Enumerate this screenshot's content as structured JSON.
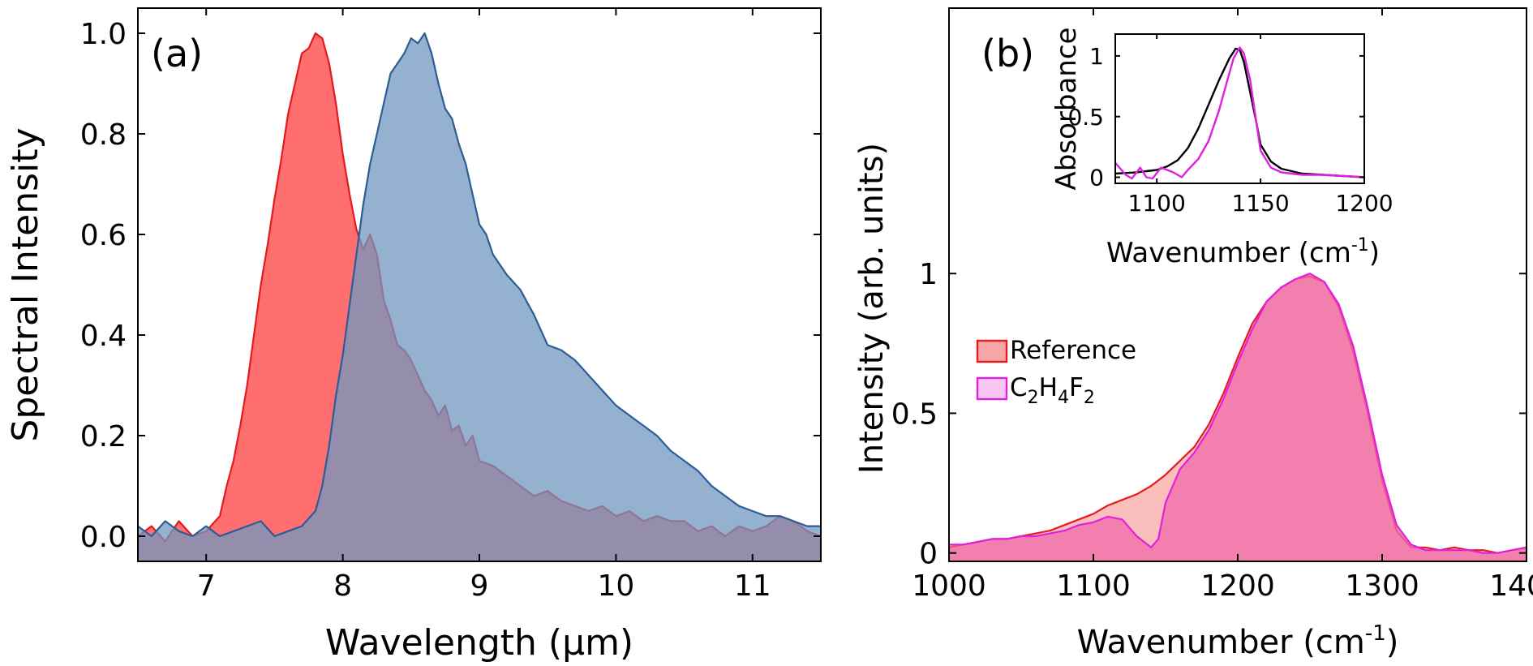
{
  "chart_data": [
    {
      "panel_label": "(a)",
      "type": "area",
      "title": "",
      "xlabel": "Wavelength (μm)",
      "ylabel": "Spectral Intensity",
      "xlim": [
        6.5,
        11.5
      ],
      "ylim": [
        -0.05,
        1.05
      ],
      "xticks": [
        7,
        8,
        9,
        10,
        11
      ],
      "xtick_labels": [
        "7",
        "8",
        "9",
        "10",
        "11"
      ],
      "yticks": [
        0.0,
        0.2,
        0.4,
        0.6,
        0.8,
        1.0
      ],
      "ytick_labels": [
        "0.0",
        "0.2",
        "0.4",
        "0.6",
        "0.8",
        "1.0"
      ],
      "grid": false,
      "series": [
        {
          "name": "Red spectrum",
          "color": "#e41a1c",
          "fill": "#ff6f6f",
          "x": [
            6.5,
            6.6,
            6.7,
            6.8,
            6.9,
            7.0,
            7.1,
            7.15,
            7.2,
            7.25,
            7.3,
            7.35,
            7.4,
            7.45,
            7.5,
            7.55,
            7.6,
            7.65,
            7.7,
            7.75,
            7.8,
            7.85,
            7.9,
            7.95,
            8.0,
            8.05,
            8.1,
            8.15,
            8.2,
            8.25,
            8.3,
            8.35,
            8.4,
            8.45,
            8.5,
            8.55,
            8.6,
            8.65,
            8.7,
            8.75,
            8.8,
            8.85,
            8.9,
            8.95,
            9.0,
            9.1,
            9.2,
            9.3,
            9.4,
            9.5,
            9.6,
            9.7,
            9.8,
            9.9,
            10.0,
            10.1,
            10.2,
            10.3,
            10.4,
            10.5,
            10.6,
            10.7,
            10.8,
            10.9,
            11.0,
            11.1,
            11.2,
            11.3,
            11.4,
            11.5
          ],
          "values": [
            0.0,
            0.02,
            -0.01,
            0.03,
            0.0,
            0.01,
            0.04,
            0.1,
            0.15,
            0.22,
            0.3,
            0.4,
            0.5,
            0.58,
            0.67,
            0.75,
            0.84,
            0.9,
            0.96,
            0.97,
            1.0,
            0.99,
            0.94,
            0.86,
            0.76,
            0.68,
            0.61,
            0.57,
            0.6,
            0.56,
            0.47,
            0.43,
            0.38,
            0.37,
            0.35,
            0.32,
            0.29,
            0.27,
            0.24,
            0.26,
            0.21,
            0.22,
            0.18,
            0.2,
            0.15,
            0.14,
            0.12,
            0.1,
            0.08,
            0.09,
            0.07,
            0.06,
            0.05,
            0.06,
            0.04,
            0.05,
            0.03,
            0.04,
            0.03,
            0.03,
            0.01,
            0.02,
            0.0,
            0.02,
            0.01,
            0.02,
            0.04,
            0.03,
            0.01,
            0.0
          ]
        },
        {
          "name": "Blue spectrum",
          "color": "#2c5d96",
          "fill": "#7097c0",
          "x": [
            6.5,
            6.6,
            6.7,
            6.8,
            6.9,
            7.0,
            7.1,
            7.2,
            7.3,
            7.4,
            7.5,
            7.6,
            7.7,
            7.8,
            7.85,
            7.9,
            7.95,
            8.0,
            8.05,
            8.1,
            8.15,
            8.2,
            8.25,
            8.3,
            8.35,
            8.4,
            8.45,
            8.5,
            8.55,
            8.6,
            8.65,
            8.7,
            8.75,
            8.8,
            8.85,
            8.9,
            8.95,
            9.0,
            9.05,
            9.1,
            9.2,
            9.3,
            9.4,
            9.5,
            9.6,
            9.7,
            9.8,
            9.9,
            10.0,
            10.1,
            10.2,
            10.3,
            10.4,
            10.5,
            10.6,
            10.7,
            10.8,
            10.9,
            11.0,
            11.1,
            11.2,
            11.3,
            11.4,
            11.5
          ],
          "values": [
            0.02,
            0.0,
            0.03,
            0.01,
            0.0,
            0.02,
            0.0,
            0.01,
            0.02,
            0.03,
            0.0,
            0.01,
            0.02,
            0.05,
            0.1,
            0.18,
            0.28,
            0.36,
            0.46,
            0.56,
            0.66,
            0.74,
            0.8,
            0.86,
            0.92,
            0.94,
            0.96,
            0.99,
            0.98,
            1.0,
            0.96,
            0.9,
            0.85,
            0.83,
            0.78,
            0.74,
            0.68,
            0.62,
            0.6,
            0.56,
            0.52,
            0.49,
            0.44,
            0.38,
            0.37,
            0.35,
            0.32,
            0.29,
            0.26,
            0.24,
            0.22,
            0.2,
            0.17,
            0.15,
            0.13,
            0.1,
            0.08,
            0.06,
            0.05,
            0.04,
            0.04,
            0.03,
            0.02,
            0.02
          ]
        }
      ]
    },
    {
      "panel_label": "(b)",
      "type": "area",
      "title": "",
      "xlabel": "Wavenumber (cm",
      "xlabel_superscript": "-1",
      "xlabel_suffix": ")",
      "ylabel": "Intensity (arb. units)",
      "xlim": [
        1000,
        1400
      ],
      "ylim": [
        -0.03,
        1.95
      ],
      "xticks": [
        1000,
        1100,
        1200,
        1300,
        1400
      ],
      "xtick_labels": [
        "1000",
        "1100",
        "1200",
        "1300",
        "1400"
      ],
      "yticks": [
        0,
        0.5,
        1
      ],
      "ytick_labels": [
        "0",
        "0.5",
        "1"
      ],
      "grid": false,
      "legend": {
        "placement": "middle-left",
        "entries": [
          {
            "label": "Reference",
            "edge": "#e41a1c",
            "fill": "#f6a6a6"
          },
          {
            "label": "C2H4F2",
            "label_parts": [
              "C",
              "2",
              "H",
              "4",
              "F",
              "2"
            ],
            "edge": "#e020e0",
            "fill": "#f7c6f2"
          }
        ]
      },
      "series": [
        {
          "name": "Reference",
          "color": "#e41a1c",
          "fill": "#f8aaa6",
          "x": [
            1000,
            1010,
            1020,
            1030,
            1040,
            1050,
            1060,
            1070,
            1080,
            1090,
            1100,
            1110,
            1120,
            1130,
            1140,
            1150,
            1160,
            1170,
            1180,
            1190,
            1200,
            1210,
            1220,
            1230,
            1240,
            1250,
            1260,
            1270,
            1280,
            1290,
            1300,
            1310,
            1320,
            1330,
            1340,
            1350,
            1360,
            1370,
            1380,
            1390,
            1400
          ],
          "values": [
            0.02,
            0.03,
            0.04,
            0.05,
            0.05,
            0.06,
            0.07,
            0.08,
            0.1,
            0.12,
            0.14,
            0.17,
            0.19,
            0.21,
            0.24,
            0.28,
            0.33,
            0.38,
            0.46,
            0.57,
            0.7,
            0.82,
            0.9,
            0.95,
            0.98,
            0.99,
            0.97,
            0.88,
            0.72,
            0.5,
            0.26,
            0.08,
            0.02,
            0.02,
            0.01,
            0.02,
            0.01,
            0.01,
            0.0,
            0.01,
            0.02
          ]
        },
        {
          "name": "C2H4F2",
          "color": "#e020e0",
          "fill": "#f06aaa",
          "x": [
            1000,
            1010,
            1020,
            1030,
            1040,
            1050,
            1060,
            1070,
            1080,
            1090,
            1100,
            1110,
            1120,
            1130,
            1135,
            1140,
            1145,
            1150,
            1160,
            1170,
            1180,
            1190,
            1200,
            1210,
            1220,
            1230,
            1240,
            1250,
            1260,
            1270,
            1280,
            1290,
            1300,
            1310,
            1320,
            1330,
            1340,
            1350,
            1360,
            1370,
            1380,
            1390,
            1400
          ],
          "values": [
            0.03,
            0.03,
            0.04,
            0.05,
            0.05,
            0.06,
            0.06,
            0.07,
            0.08,
            0.1,
            0.11,
            0.13,
            0.12,
            0.06,
            0.04,
            0.02,
            0.05,
            0.18,
            0.3,
            0.36,
            0.44,
            0.55,
            0.68,
            0.8,
            0.9,
            0.95,
            0.98,
            1.0,
            0.97,
            0.89,
            0.74,
            0.52,
            0.28,
            0.1,
            0.03,
            0.01,
            0.01,
            0.01,
            0.01,
            0.0,
            0.0,
            0.01,
            0.02
          ]
        }
      ]
    },
    {
      "panel_label": "inset",
      "type": "line",
      "title": "",
      "xlabel": "Wavenumber (cm",
      "xlabel_superscript": "-1",
      "xlabel_suffix": ")",
      "ylabel": "Absorbance",
      "xlim": [
        1080,
        1200
      ],
      "ylim": [
        -0.05,
        1.18
      ],
      "xticks": [
        1100,
        1150,
        1200
      ],
      "xtick_labels": [
        "1100",
        "1150",
        "1200"
      ],
      "yticks": [
        0,
        0.5,
        1
      ],
      "ytick_labels": [
        "0",
        "0.5",
        "1"
      ],
      "grid": false,
      "series": [
        {
          "name": "Absorbance (black)",
          "color": "#000000",
          "x": [
            1080,
            1090,
            1100,
            1105,
            1110,
            1115,
            1120,
            1125,
            1130,
            1135,
            1138,
            1140,
            1142,
            1145,
            1148,
            1150,
            1155,
            1160,
            1170,
            1180,
            1190,
            1200
          ],
          "values": [
            0.03,
            0.04,
            0.06,
            0.09,
            0.14,
            0.24,
            0.4,
            0.6,
            0.8,
            0.98,
            1.06,
            1.05,
            0.95,
            0.7,
            0.45,
            0.27,
            0.13,
            0.07,
            0.03,
            0.02,
            0.01,
            0.0
          ]
        },
        {
          "name": "Absorbance (magenta)",
          "color": "#e020e0",
          "x": [
            1080,
            1085,
            1088,
            1092,
            1095,
            1098,
            1102,
            1105,
            1108,
            1112,
            1115,
            1120,
            1125,
            1130,
            1134,
            1137,
            1140,
            1142,
            1145,
            1148,
            1150,
            1155,
            1160,
            1170,
            1180,
            1190,
            1200
          ],
          "values": [
            0.12,
            0.02,
            -0.01,
            0.08,
            0.0,
            -0.01,
            0.08,
            0.06,
            0.04,
            0.0,
            0.06,
            0.15,
            0.3,
            0.55,
            0.8,
            0.98,
            1.07,
            1.02,
            0.8,
            0.45,
            0.22,
            0.08,
            0.04,
            0.02,
            0.02,
            0.01,
            0.0
          ]
        }
      ]
    }
  ]
}
